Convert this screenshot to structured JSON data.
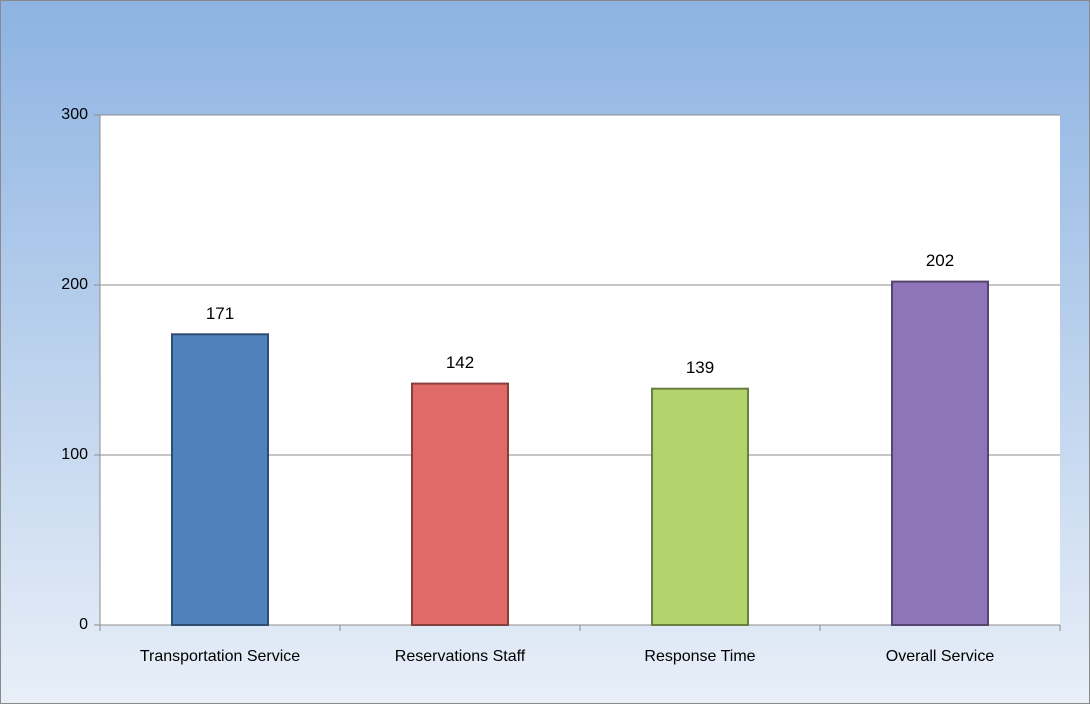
{
  "chart_data": {
    "type": "bar",
    "categories": [
      "Transportation Service",
      "Reservations Staff",
      "Response Time",
      "Overall Service"
    ],
    "values": [
      171,
      142,
      139,
      202
    ],
    "colors": [
      "#4f81bd",
      "#e06a67",
      "#b3d36c",
      "#8e74b8"
    ],
    "ylim": [
      0,
      300
    ],
    "yticks": [
      0,
      100,
      200,
      300
    ],
    "grid": true
  }
}
